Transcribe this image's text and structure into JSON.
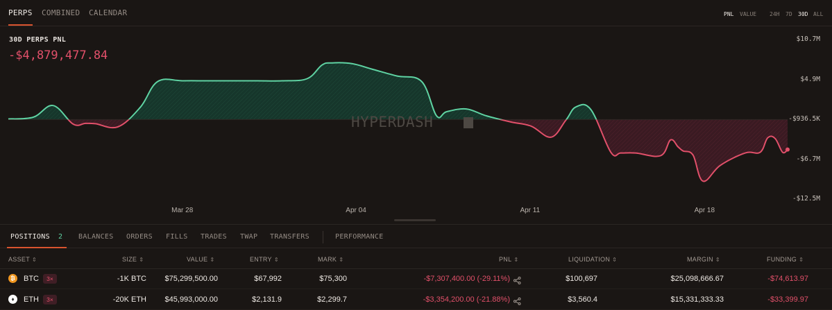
{
  "top_tabs": [
    {
      "label": "PERPS",
      "active": true
    },
    {
      "label": "COMBINED",
      "active": false
    },
    {
      "label": "CALENDAR",
      "active": false
    }
  ],
  "metric_toggle": [
    {
      "label": "PNL",
      "active": true
    },
    {
      "label": "VALUE",
      "active": false
    }
  ],
  "range_toggle": [
    {
      "label": "24H",
      "active": false
    },
    {
      "label": "7D",
      "active": false
    },
    {
      "label": "30D",
      "active": true
    },
    {
      "label": "ALL",
      "active": false
    }
  ],
  "chart_header": {
    "title": "30D PERPS PNL",
    "value": "-$4,879,477.84"
  },
  "watermark": "HYPERDASH",
  "colors": {
    "positive": "#5fd3a3",
    "negative": "#e2506a",
    "accent": "#d9542f",
    "background": "#1a1614"
  },
  "chart_data": {
    "type": "area",
    "title": "30D PERPS PNL",
    "ytick_labels": [
      "$10.7M",
      "$4.9M",
      "-$936.5K",
      "-$6.7M",
      "-$12.5M"
    ],
    "yticks": [
      10.7,
      4.9,
      -0.9365,
      -6.7,
      -12.5
    ],
    "ylim": [
      -12.5,
      10.7
    ],
    "xtick_labels": [
      "Mar 28",
      "Apr 04",
      "Apr 11",
      "Apr 18"
    ],
    "xticks": [
      7,
      14,
      21,
      28
    ],
    "xlim": [
      0,
      31.3
    ],
    "baseline": -0.9365,
    "x": [
      0,
      1,
      1.8,
      2.6,
      3.1,
      3.5,
      4.4,
      5.3,
      6,
      7,
      8,
      9,
      10,
      11,
      12,
      12.6,
      13,
      13.8,
      14.6,
      15.6,
      16.6,
      17.2,
      17.6,
      18.4,
      19.2,
      20.2,
      21,
      21.8,
      22.4,
      22.8,
      23.4,
      24.2,
      24.6,
      25.2,
      26.2,
      26.6,
      26.9,
      27.1,
      27.5,
      27.9,
      28.6,
      29.6,
      30.2,
      30.5,
      30.8,
      31.1,
      31.3
    ],
    "y": [
      -0.85,
      -0.6,
      1.1,
      -1.6,
      -1.5,
      -1.55,
      -2.0,
      0.85,
      4.6,
      4.7,
      4.7,
      4.7,
      4.7,
      4.7,
      5.0,
      7.0,
      7.3,
      7.2,
      6.4,
      5.4,
      4.6,
      -0.4,
      0.2,
      0.6,
      -0.4,
      -1.3,
      -1.9,
      -3.5,
      -1.0,
      0.9,
      0.5,
      -5.7,
      -5.8,
      -5.8,
      -6.2,
      -3.9,
      -4.9,
      -5.5,
      -6.1,
      -9.9,
      -7.6,
      -5.8,
      -5.7,
      -3.6,
      -3.7,
      -5.7,
      -5.3
    ]
  },
  "bottom_tabs": [
    {
      "label": "POSITIONS",
      "active": true,
      "count": "2"
    },
    {
      "label": "BALANCES",
      "active": false
    },
    {
      "label": "ORDERS",
      "active": false
    },
    {
      "label": "FILLS",
      "active": false
    },
    {
      "label": "TRADES",
      "active": false
    },
    {
      "label": "TWAP",
      "active": false
    },
    {
      "label": "TRANSFERS",
      "active": false
    },
    {
      "label": "PERFORMANCE",
      "active": false
    }
  ],
  "table": {
    "columns": [
      "ASSET",
      "SIZE",
      "VALUE",
      "ENTRY",
      "MARK",
      "PNL",
      "LIQUIDATION",
      "MARGIN",
      "FUNDING"
    ],
    "rows": [
      {
        "icon": "btc-coin-icon",
        "asset": "BTC",
        "leverage": "3×",
        "size": "-1K BTC",
        "value": "$75,299,500.00",
        "entry": "$67,992",
        "mark": "$75,300",
        "pnl": "-$7,307,400.00 (-29.11%)",
        "liquidation": "$100,697",
        "margin": "$25,098,666.67",
        "funding": "-$74,613.97"
      },
      {
        "icon": "eth-coin-icon",
        "asset": "ETH",
        "leverage": "3×",
        "size": "-20K ETH",
        "value": "$45,993,000.00",
        "entry": "$2,131.9",
        "mark": "$2,299.7",
        "pnl": "-$3,354,200.00 (-21.88%)",
        "liquidation": "$3,560.4",
        "margin": "$15,331,333.33",
        "funding": "-$33,399.97"
      }
    ]
  }
}
